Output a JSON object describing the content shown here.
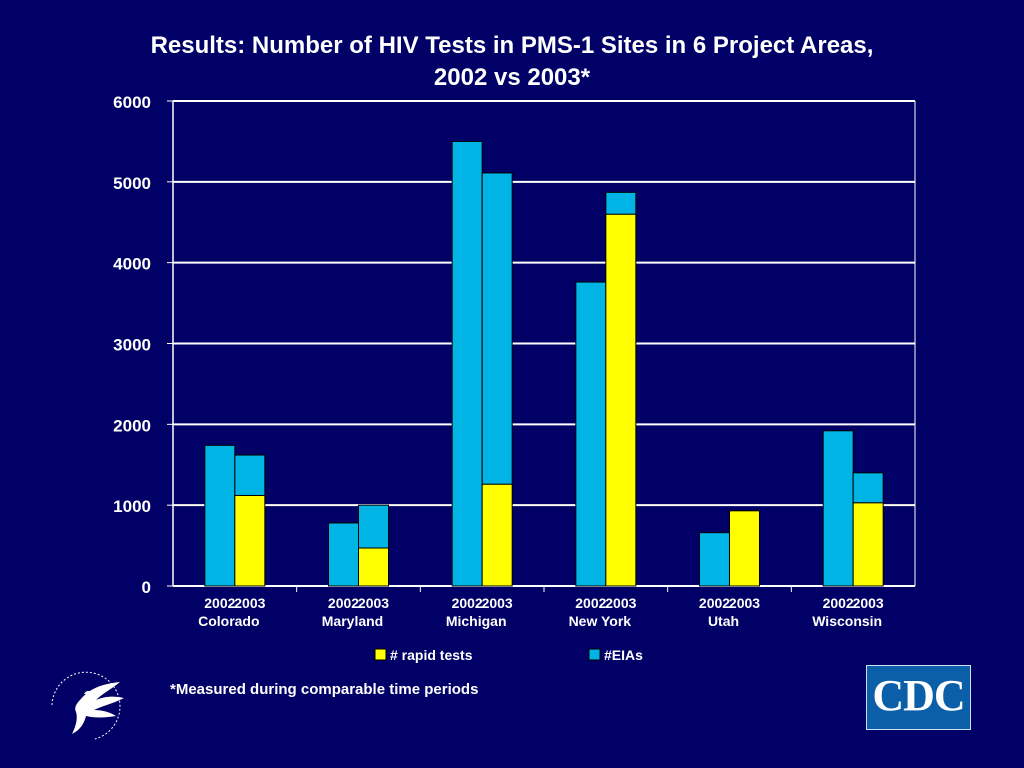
{
  "title_line1": "Results:  Number of HIV Tests in PMS-1 Sites in 6 Project Areas,",
  "title_line2": "2002 vs 2003*",
  "footnote": "*Measured during comparable time periods",
  "logos": {
    "cdc_text": "CDC",
    "hhs_icon": "hhs-eagle-icon"
  },
  "colors": {
    "background": "#000066",
    "rapid": "#ffff00",
    "eia": "#00b4e6",
    "plot_bg": "#000066",
    "grid": "#ffffff"
  },
  "chart_data": {
    "type": "bar",
    "stacked": true,
    "title": "Results:  Number of HIV Tests in PMS-1 Sites in 6 Project Areas, 2002 vs 2003*",
    "groups": [
      "Colorado",
      "Maryland",
      "Michigan",
      "New York",
      "Utah",
      "Wisconsin"
    ],
    "years": [
      "2002",
      "2003"
    ],
    "ylim": [
      0,
      6000
    ],
    "yticks": [
      "0",
      "1000",
      "2000",
      "3000",
      "4000",
      "5000",
      "6000"
    ],
    "grid": true,
    "legend_position": "bottom",
    "series": [
      {
        "name": "# rapid tests",
        "color": "#ffff00",
        "values": [
          [
            0,
            1120
          ],
          [
            0,
            470
          ],
          [
            0,
            1260
          ],
          [
            0,
            4600
          ],
          [
            0,
            930
          ],
          [
            0,
            1030
          ]
        ]
      },
      {
        "name": "#EIAs",
        "color": "#00b4e6",
        "values": [
          [
            1740,
            500
          ],
          [
            780,
            530
          ],
          [
            5500,
            3850
          ],
          [
            3760,
            270
          ],
          [
            660,
            0
          ],
          [
            1920,
            370
          ]
        ]
      }
    ]
  }
}
